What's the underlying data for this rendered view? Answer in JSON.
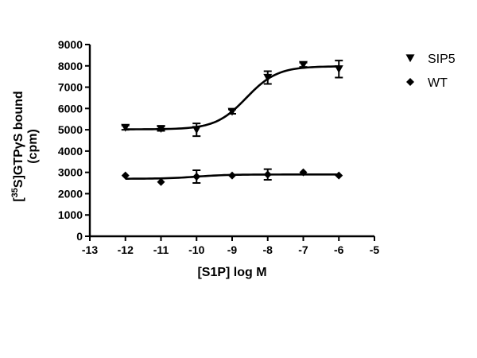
{
  "chart_data": {
    "type": "scatter",
    "xlabel": "[S1P] log M",
    "ylabel_line1": {
      "pre": "[",
      "sup": "35",
      "post": "S]GTPγS bound"
    },
    "ylabel_line2": "(cpm)",
    "xlim": [
      -13,
      -5
    ],
    "ylim": [
      0,
      9000
    ],
    "xticks": [
      -13,
      -12,
      -11,
      -10,
      -9,
      -8,
      -7,
      -6,
      -5
    ],
    "yticks": [
      0,
      1000,
      2000,
      3000,
      4000,
      5000,
      6000,
      7000,
      8000,
      9000
    ],
    "legend_position": "top-right",
    "series": [
      {
        "name": "SIP5",
        "marker": "triangle-down",
        "x": [
          -12,
          -11,
          -10,
          -9,
          -8,
          -7,
          -6
        ],
        "y": [
          5100,
          5050,
          5000,
          5850,
          7450,
          8050,
          7850
        ],
        "err": [
          100,
          100,
          300,
          100,
          300,
          100,
          400
        ],
        "fit": {
          "bottom": 5020,
          "top": 7980,
          "logEC50": -8.6,
          "hill": 1.0
        }
      },
      {
        "name": "WT",
        "marker": "diamond",
        "x": [
          -12,
          -11,
          -10,
          -9,
          -8,
          -7,
          -6
        ],
        "y": [
          2850,
          2550,
          2800,
          2850,
          2900,
          3000,
          2850
        ],
        "err": [
          0,
          0,
          300,
          0,
          250,
          0,
          0
        ],
        "fit": {
          "bottom": 2700,
          "top": 2900,
          "logEC50": -10.0,
          "hill": 1.0
        }
      }
    ]
  }
}
